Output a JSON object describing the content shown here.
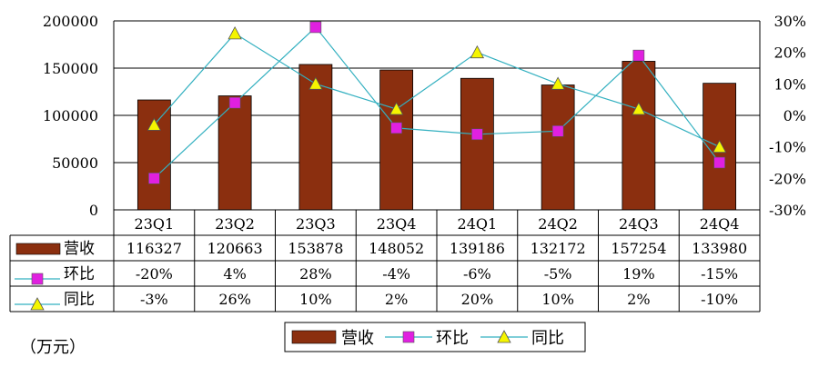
{
  "colors": {
    "bar": "#8B2F0F",
    "mom_line": "#33B0C0",
    "mom_marker": "#E020E0",
    "yoy_line": "#33B0C0",
    "yoy_marker": "#F5F500",
    "grid": "#000000"
  },
  "unit_label": "（万元）",
  "chart_data": {
    "type": "bar",
    "categories": [
      "23Q1",
      "23Q2",
      "23Q3",
      "23Q4",
      "24Q1",
      "24Q2",
      "24Q3",
      "24Q4"
    ],
    "left_axis": {
      "ticks": [
        "200000",
        "150000",
        "100000",
        "50000",
        "0"
      ],
      "ylim": [
        0,
        200000
      ]
    },
    "right_axis": {
      "ticks": [
        "30%",
        "20%",
        "10%",
        "0%",
        "-10%",
        "-20%",
        "-30%"
      ],
      "ylim": [
        -30,
        30
      ]
    },
    "grid": true,
    "legend_position": "bottom",
    "series": [
      {
        "name": "营收",
        "type": "bar",
        "axis": "left",
        "values": [
          116327,
          120663,
          153878,
          148052,
          139186,
          132172,
          157254,
          133980
        ],
        "labels": [
          "116327",
          "120663",
          "153878",
          "148052",
          "139186",
          "132172",
          "157254",
          "133980"
        ]
      },
      {
        "name": "环比",
        "type": "line",
        "axis": "right",
        "marker": "square",
        "values": [
          -20,
          4,
          28,
          -4,
          -6,
          -5,
          19,
          -15
        ],
        "labels": [
          "-20%",
          "4%",
          "28%",
          "-4%",
          "-6%",
          "-5%",
          "19%",
          "-15%"
        ]
      },
      {
        "name": "同比",
        "type": "line",
        "axis": "right",
        "marker": "triangle",
        "values": [
          -3,
          26,
          10,
          2,
          20,
          10,
          2,
          -10
        ],
        "labels": [
          "-3%",
          "26%",
          "10%",
          "2%",
          "20%",
          "10%",
          "2%",
          "-10%"
        ]
      }
    ]
  }
}
